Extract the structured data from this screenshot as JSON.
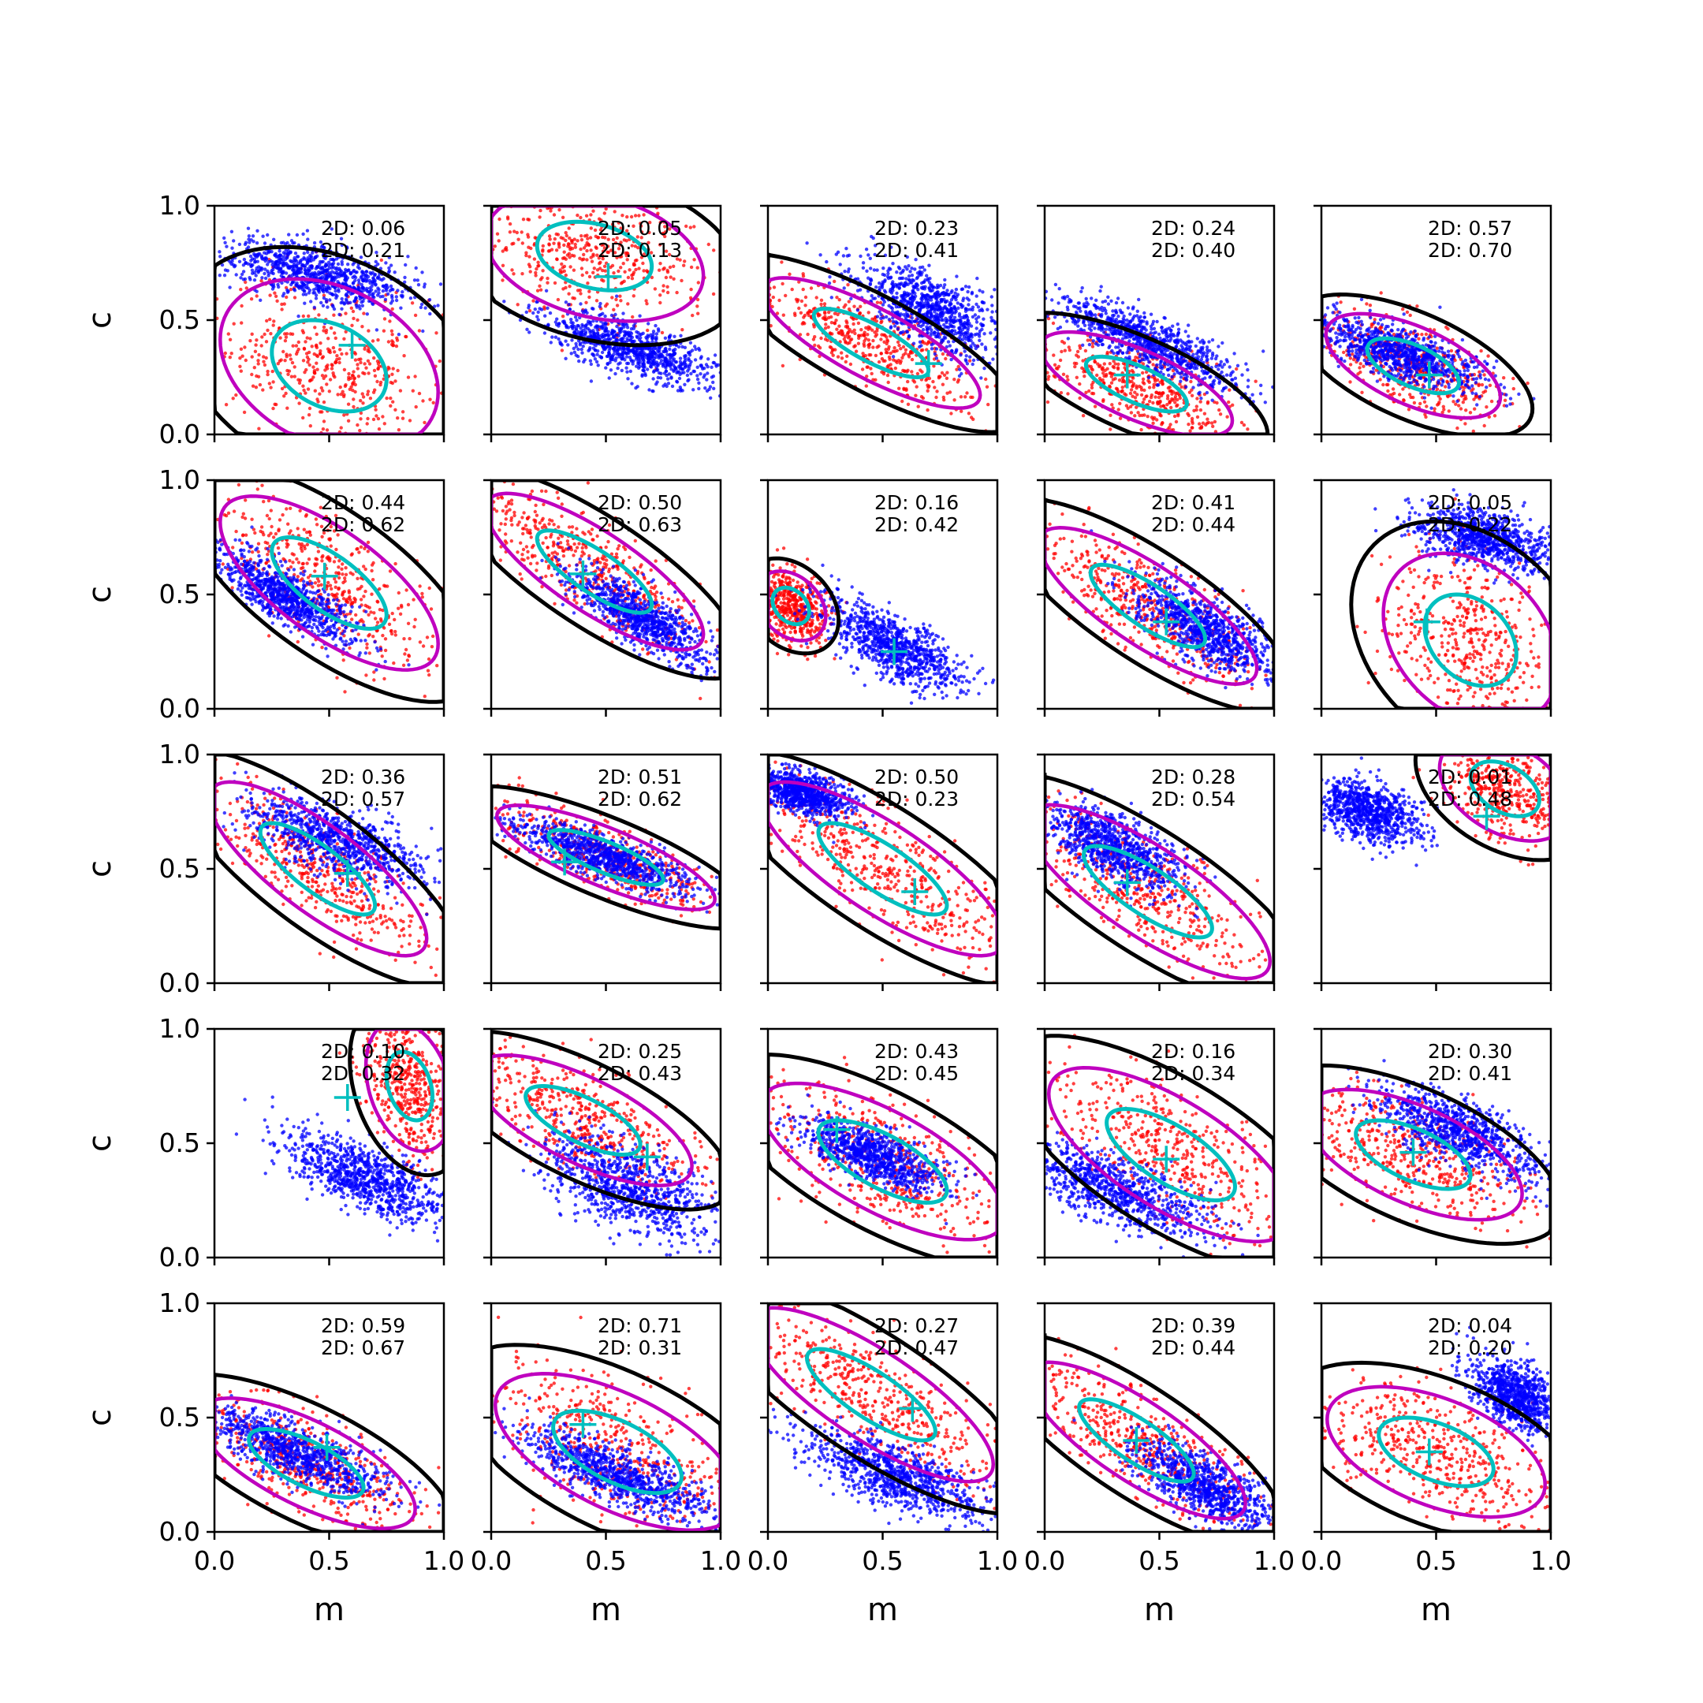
{
  "figure": {
    "rows": 5,
    "cols": 5,
    "xlabel": "m",
    "ylabel": "c",
    "xlim": [
      0,
      1
    ],
    "ylim": [
      0,
      1
    ],
    "xticks": [
      "0.0",
      "0.5",
      "1.0"
    ],
    "yticks": [
      "0.0",
      "0.5",
      "1.0"
    ],
    "colors": {
      "blue_points": "#0000ff",
      "red_points": "#ff0000",
      "black_contour": "#000000",
      "magenta_contour": "#bf00bf",
      "cyan_contour_and_marker": "#00bfbf"
    }
  },
  "chart_data": [
    {
      "type": "scatter",
      "row": 1,
      "col": 1,
      "annotations": [
        "2D: 0.06",
        "2D: 0.21"
      ],
      "marker": [
        0.6,
        0.39
      ],
      "blue": {
        "m": 0.45,
        "c": 0.7,
        "sm": 0.2,
        "sc": 0.07,
        "rho": -0.5
      },
      "red": {
        "m": 0.5,
        "c": 0.3,
        "sm": 0.25,
        "sc": 0.2,
        "rho": -0.3
      }
    },
    {
      "type": "scatter",
      "row": 1,
      "col": 2,
      "annotations": [
        "2D: 0.05",
        "2D: 0.13"
      ],
      "marker": [
        0.51,
        0.69
      ],
      "blue": {
        "m": 0.6,
        "c": 0.38,
        "sm": 0.18,
        "sc": 0.08,
        "rho": -0.7
      },
      "red": {
        "m": 0.45,
        "c": 0.78,
        "sm": 0.25,
        "sc": 0.15,
        "rho": -0.3
      }
    },
    {
      "type": "scatter",
      "row": 1,
      "col": 3,
      "annotations": [
        "2D: 0.23",
        "2D: 0.41"
      ],
      "marker": [
        0.7,
        0.31
      ],
      "blue": {
        "m": 0.7,
        "c": 0.55,
        "sm": 0.15,
        "sc": 0.1,
        "rho": -0.6
      },
      "red": {
        "m": 0.45,
        "c": 0.4,
        "sm": 0.25,
        "sc": 0.15,
        "rho": -0.8
      }
    },
    {
      "type": "scatter",
      "row": 1,
      "col": 4,
      "annotations": [
        "2D: 0.24",
        "2D: 0.40"
      ],
      "marker": [
        0.36,
        0.26
      ],
      "blue": {
        "m": 0.45,
        "c": 0.4,
        "sm": 0.2,
        "sc": 0.1,
        "rho": -0.8
      },
      "red": {
        "m": 0.4,
        "c": 0.22,
        "sm": 0.22,
        "sc": 0.12,
        "rho": -0.7
      }
    },
    {
      "type": "scatter",
      "row": 1,
      "col": 5,
      "annotations": [
        "2D: 0.57",
        "2D: 0.70"
      ],
      "marker": [
        0.47,
        0.26
      ],
      "blue": {
        "m": 0.35,
        "c": 0.35,
        "sm": 0.18,
        "sc": 0.08,
        "rho": -0.7
      },
      "red": {
        "m": 0.4,
        "c": 0.3,
        "sm": 0.2,
        "sc": 0.12,
        "rho": -0.6
      }
    },
    {
      "type": "scatter",
      "row": 2,
      "col": 1,
      "annotations": [
        "2D: 0.44",
        "2D: 0.62"
      ],
      "marker": [
        0.48,
        0.58
      ],
      "blue": {
        "m": 0.3,
        "c": 0.5,
        "sm": 0.15,
        "sc": 0.1,
        "rho": -0.8
      },
      "red": {
        "m": 0.5,
        "c": 0.55,
        "sm": 0.25,
        "sc": 0.2,
        "rho": -0.7
      }
    },
    {
      "type": "scatter",
      "row": 2,
      "col": 2,
      "annotations": [
        "2D: 0.50",
        "2D: 0.63"
      ],
      "marker": [
        0.4,
        0.59
      ],
      "blue": {
        "m": 0.65,
        "c": 0.4,
        "sm": 0.15,
        "sc": 0.1,
        "rho": -0.8
      },
      "red": {
        "m": 0.45,
        "c": 0.6,
        "sm": 0.25,
        "sc": 0.18,
        "rho": -0.8
      }
    },
    {
      "type": "scatter",
      "row": 2,
      "col": 3,
      "annotations": [
        "2D: 0.16",
        "2D: 0.42"
      ],
      "marker": [
        0.55,
        0.25
      ],
      "blue": {
        "m": 0.55,
        "c": 0.27,
        "sm": 0.15,
        "sc": 0.1,
        "rho": -0.7
      },
      "red": {
        "m": 0.1,
        "c": 0.45,
        "sm": 0.08,
        "sc": 0.08,
        "rho": -0.3
      }
    },
    {
      "type": "scatter",
      "row": 2,
      "col": 4,
      "annotations": [
        "2D: 0.41",
        "2D: 0.44"
      ],
      "marker": [
        0.53,
        0.38
      ],
      "blue": {
        "m": 0.7,
        "c": 0.35,
        "sm": 0.15,
        "sc": 0.1,
        "rho": -0.7
      },
      "red": {
        "m": 0.45,
        "c": 0.45,
        "sm": 0.25,
        "sc": 0.18,
        "rho": -0.8
      }
    },
    {
      "type": "scatter",
      "row": 2,
      "col": 5,
      "annotations": [
        "2D: 0.05",
        "2D: 0.22"
      ],
      "marker": [
        0.46,
        0.38
      ],
      "blue": {
        "m": 0.7,
        "c": 0.75,
        "sm": 0.15,
        "sc": 0.07,
        "rho": -0.5
      },
      "red": {
        "m": 0.65,
        "c": 0.3,
        "sm": 0.2,
        "sc": 0.2,
        "rho": -0.3
      }
    },
    {
      "type": "scatter",
      "row": 3,
      "col": 1,
      "annotations": [
        "2D: 0.36",
        "2D: 0.57"
      ],
      "marker": [
        0.58,
        0.48
      ],
      "blue": {
        "m": 0.55,
        "c": 0.62,
        "sm": 0.2,
        "sc": 0.1,
        "rho": -0.7
      },
      "red": {
        "m": 0.45,
        "c": 0.5,
        "sm": 0.25,
        "sc": 0.2,
        "rho": -0.8
      }
    },
    {
      "type": "scatter",
      "row": 3,
      "col": 2,
      "annotations": [
        "2D: 0.51",
        "2D: 0.62"
      ],
      "marker": [
        0.32,
        0.53
      ],
      "blue": {
        "m": 0.5,
        "c": 0.55,
        "sm": 0.2,
        "sc": 0.08,
        "rho": -0.8
      },
      "red": {
        "m": 0.5,
        "c": 0.55,
        "sm": 0.25,
        "sc": 0.12,
        "rho": -0.8
      }
    },
    {
      "type": "scatter",
      "row": 3,
      "col": 3,
      "annotations": [
        "2D: 0.50",
        "2D: 0.23"
      ],
      "marker": [
        0.64,
        0.4
      ],
      "blue": {
        "m": 0.15,
        "c": 0.83,
        "sm": 0.1,
        "sc": 0.05,
        "rho": -0.5
      },
      "red": {
        "m": 0.5,
        "c": 0.5,
        "sm": 0.28,
        "sc": 0.2,
        "rho": -0.8
      }
    },
    {
      "type": "scatter",
      "row": 3,
      "col": 4,
      "annotations": [
        "2D: 0.28",
        "2D: 0.54"
      ],
      "marker": [
        0.36,
        0.44
      ],
      "blue": {
        "m": 0.3,
        "c": 0.6,
        "sm": 0.15,
        "sc": 0.1,
        "rho": -0.7
      },
      "red": {
        "m": 0.45,
        "c": 0.4,
        "sm": 0.28,
        "sc": 0.2,
        "rho": -0.8
      }
    },
    {
      "type": "scatter",
      "row": 3,
      "col": 5,
      "annotations": [
        "2D: 0.01",
        "2D: 0.48"
      ],
      "marker": [
        0.72,
        0.73
      ],
      "blue": {
        "m": 0.2,
        "c": 0.75,
        "sm": 0.12,
        "sc": 0.07,
        "rho": -0.4
      },
      "red": {
        "m": 0.8,
        "c": 0.85,
        "sm": 0.15,
        "sc": 0.12,
        "rho": -0.4
      }
    },
    {
      "type": "scatter",
      "row": 4,
      "col": 1,
      "annotations": [
        "2D: 0.10",
        "2D: 0.32"
      ],
      "marker": [
        0.58,
        0.7
      ],
      "blue": {
        "m": 0.65,
        "c": 0.35,
        "sm": 0.18,
        "sc": 0.1,
        "rho": -0.7
      },
      "red": {
        "m": 0.85,
        "c": 0.75,
        "sm": 0.1,
        "sc": 0.15,
        "rho": -0.3
      }
    },
    {
      "type": "scatter",
      "row": 4,
      "col": 2,
      "annotations": [
        "2D: 0.25",
        "2D: 0.43"
      ],
      "marker": [
        0.68,
        0.44
      ],
      "blue": {
        "m": 0.6,
        "c": 0.3,
        "sm": 0.2,
        "sc": 0.12,
        "rho": -0.6
      },
      "red": {
        "m": 0.4,
        "c": 0.6,
        "sm": 0.25,
        "sc": 0.15,
        "rho": -0.7
      }
    },
    {
      "type": "scatter",
      "row": 4,
      "col": 3,
      "annotations": [
        "2D: 0.43",
        "2D: 0.45"
      ],
      "marker": [
        0.3,
        0.56
      ],
      "blue": {
        "m": 0.45,
        "c": 0.45,
        "sm": 0.15,
        "sc": 0.08,
        "rho": -0.7
      },
      "red": {
        "m": 0.5,
        "c": 0.42,
        "sm": 0.28,
        "sc": 0.18,
        "rho": -0.7
      }
    },
    {
      "type": "scatter",
      "row": 4,
      "col": 4,
      "annotations": [
        "2D: 0.16",
        "2D: 0.34"
      ],
      "marker": [
        0.53,
        0.43
      ],
      "blue": {
        "m": 0.3,
        "c": 0.3,
        "sm": 0.2,
        "sc": 0.1,
        "rho": -0.7
      },
      "red": {
        "m": 0.55,
        "c": 0.45,
        "sm": 0.28,
        "sc": 0.2,
        "rho": -0.7
      }
    },
    {
      "type": "scatter",
      "row": 4,
      "col": 5,
      "annotations": [
        "2D: 0.30",
        "2D: 0.41"
      ],
      "marker": [
        0.4,
        0.46
      ],
      "blue": {
        "m": 0.6,
        "c": 0.55,
        "sm": 0.18,
        "sc": 0.1,
        "rho": -0.7
      },
      "red": {
        "m": 0.4,
        "c": 0.45,
        "sm": 0.25,
        "sc": 0.15,
        "rho": -0.6
      }
    },
    {
      "type": "scatter",
      "row": 5,
      "col": 1,
      "annotations": [
        "2D: 0.59",
        "2D: 0.67"
      ],
      "marker": [
        0.49,
        0.37
      ],
      "blue": {
        "m": 0.35,
        "c": 0.35,
        "sm": 0.2,
        "sc": 0.1,
        "rho": -0.8
      },
      "red": {
        "m": 0.4,
        "c": 0.3,
        "sm": 0.25,
        "sc": 0.15,
        "rho": -0.7
      }
    },
    {
      "type": "scatter",
      "row": 5,
      "col": 2,
      "annotations": [
        "2D: 0.71",
        "2D: 0.31"
      ],
      "marker": [
        0.4,
        0.47
      ],
      "blue": {
        "m": 0.55,
        "c": 0.25,
        "sm": 0.2,
        "sc": 0.1,
        "rho": -0.8
      },
      "red": {
        "m": 0.55,
        "c": 0.35,
        "sm": 0.28,
        "sc": 0.18,
        "rho": -0.6
      }
    },
    {
      "type": "scatter",
      "row": 5,
      "col": 3,
      "annotations": [
        "2D: 0.27",
        "2D: 0.47"
      ],
      "marker": [
        0.63,
        0.54
      ],
      "blue": {
        "m": 0.55,
        "c": 0.25,
        "sm": 0.2,
        "sc": 0.1,
        "rho": -0.7
      },
      "red": {
        "m": 0.45,
        "c": 0.6,
        "sm": 0.28,
        "sc": 0.2,
        "rho": -0.8
      }
    },
    {
      "type": "scatter",
      "row": 5,
      "col": 4,
      "annotations": [
        "2D: 0.39",
        "2D: 0.44"
      ],
      "marker": [
        0.4,
        0.4
      ],
      "blue": {
        "m": 0.7,
        "c": 0.2,
        "sm": 0.15,
        "sc": 0.1,
        "rho": -0.7
      },
      "red": {
        "m": 0.4,
        "c": 0.4,
        "sm": 0.25,
        "sc": 0.18,
        "rho": -0.8
      }
    },
    {
      "type": "scatter",
      "row": 5,
      "col": 5,
      "annotations": [
        "2D: 0.04",
        "2D: 0.20"
      ],
      "marker": [
        0.47,
        0.35
      ],
      "blue": {
        "m": 0.85,
        "c": 0.6,
        "sm": 0.1,
        "sc": 0.08,
        "rho": -0.5
      },
      "red": {
        "m": 0.5,
        "c": 0.35,
        "sm": 0.25,
        "sc": 0.15,
        "rho": -0.5
      }
    }
  ]
}
